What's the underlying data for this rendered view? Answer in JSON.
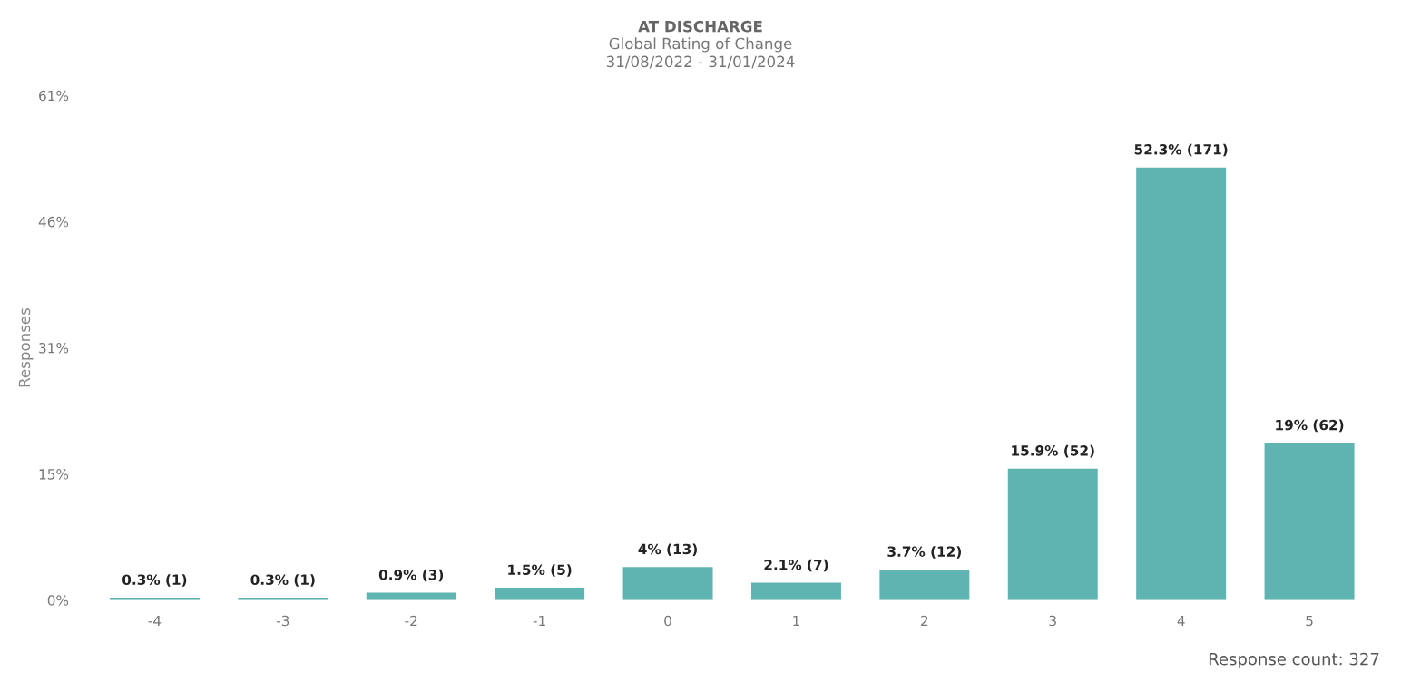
{
  "chart_data": {
    "type": "bar",
    "title": "AT DISCHARGE",
    "subtitle": "Global Rating of Change\n31/08/2022 - 31/01/2024",
    "ylabel": "Responses",
    "categories": [
      "-4",
      "-3",
      "-2",
      "-1",
      "0",
      "1",
      "2",
      "3",
      "4",
      "5"
    ],
    "values": [
      0.3,
      0.3,
      0.9,
      1.5,
      4,
      2.1,
      3.7,
      15.9,
      52.3,
      19
    ],
    "value_labels": [
      "0.3% (1)",
      "0.3% (1)",
      "0.9% (3)",
      "1.5% (5)",
      "4% (13)",
      "2.1% (7)",
      "3.7% (12)",
      "15.9% (52)",
      "52.3% (171)",
      "19% (62)"
    ],
    "color": "#5fb3b0",
    "ylim": [
      0,
      61
    ],
    "yticks": [
      {
        "value": 0,
        "label": "0%"
      },
      {
        "value": 15.25,
        "label": "15%"
      },
      {
        "value": 30.5,
        "label": "31%"
      },
      {
        "value": 45.75,
        "label": "46%"
      },
      {
        "value": 61,
        "label": "61%"
      }
    ],
    "grid": false,
    "legend": false,
    "annotations": [
      "Response count: 327"
    ]
  }
}
